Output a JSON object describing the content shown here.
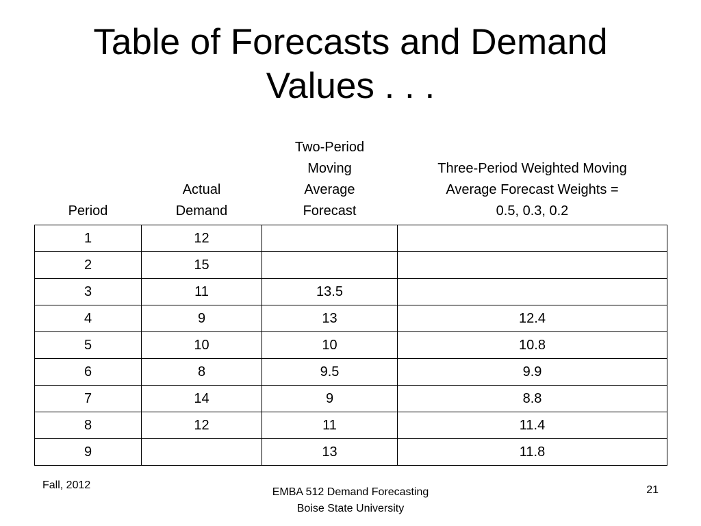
{
  "slide": {
    "title_lines": [
      "Table of Forecasts and Demand",
      "Values . . ."
    ]
  },
  "table": {
    "headers": [
      [
        "Period"
      ],
      [
        "Actual",
        "Demand"
      ],
      [
        "Two-Period",
        "Moving",
        "Average",
        "Forecast"
      ],
      [
        "Three-Period Weighted Moving",
        "Average Forecast Weights =",
        "0.5, 0.3, 0.2"
      ]
    ],
    "rows": [
      [
        "1",
        "12",
        "",
        ""
      ],
      [
        "2",
        "15",
        "",
        ""
      ],
      [
        "3",
        "11",
        "13.5",
        ""
      ],
      [
        "4",
        "9",
        "13",
        "12.4"
      ],
      [
        "5",
        "10",
        "10",
        "10.8"
      ],
      [
        "6",
        "8",
        "9.5",
        "9.9"
      ],
      [
        "7",
        "14",
        "9",
        "8.8"
      ],
      [
        "8",
        "12",
        "11",
        "11.4"
      ],
      [
        "9",
        "",
        "13",
        "11.8"
      ]
    ]
  },
  "footer": {
    "left": "Fall, 2012",
    "center_lines": [
      "EMBA 512 Demand Forecasting",
      "Boise State University"
    ],
    "page_number": "21"
  }
}
